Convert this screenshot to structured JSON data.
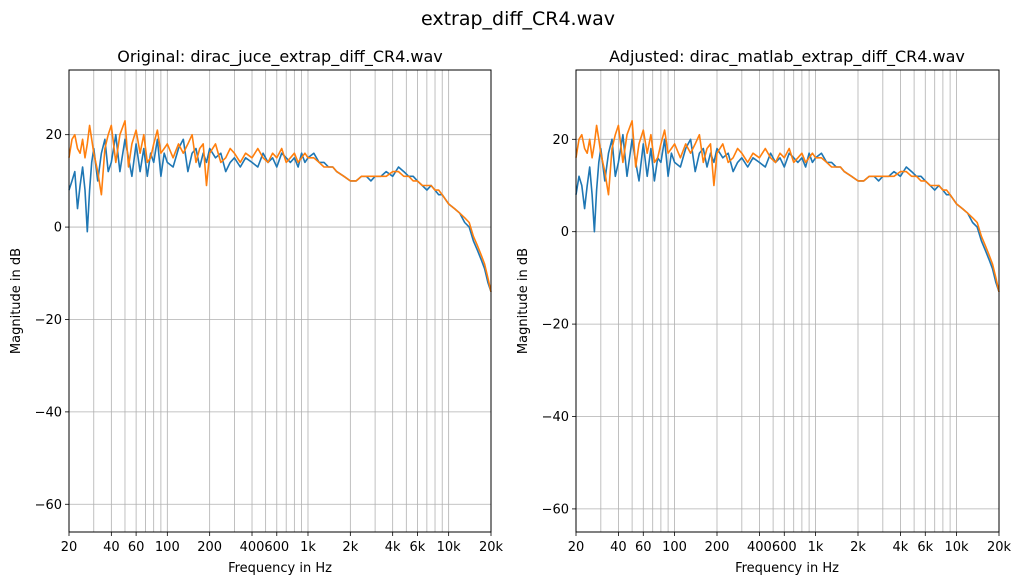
{
  "figure": {
    "suptitle": "extrap_diff_CR4.wav"
  },
  "colors": {
    "series_1": "#1f77b4",
    "series_2": "#ff7f0e",
    "grid": "#b0b0b0",
    "axes": "#000000"
  },
  "chart_data": [
    {
      "type": "line",
      "title": "Original: dirac_juce_extrap_diff_CR4.wav",
      "xlabel": "Frequency in Hz",
      "ylabel": "Magnitude in dB",
      "xscale": "log",
      "xlim": [
        20,
        20000
      ],
      "ylim": [
        -66,
        34
      ],
      "grid": true,
      "xticks": [
        20,
        40,
        60,
        100,
        200,
        400,
        600,
        1000,
        2000,
        4000,
        6000,
        10000,
        20000
      ],
      "xticklabels": [
        "20",
        "40",
        "60",
        "100",
        "200",
        "400",
        "600",
        "1k",
        "2k",
        "4k",
        "6k",
        "10k",
        "20k"
      ],
      "yticks": [
        20,
        0,
        -20,
        -40,
        -60
      ],
      "yticklabels": [
        "20",
        "0",
        "−20",
        "−40",
        "−60"
      ],
      "series": [
        {
          "color": "#1f77b4",
          "x": [
            20,
            21,
            22,
            23,
            24,
            25,
            26,
            27,
            28,
            29,
            30,
            32,
            34,
            36,
            38,
            40,
            43,
            46,
            50,
            53,
            56,
            60,
            64,
            68,
            72,
            76,
            80,
            85,
            90,
            95,
            100,
            110,
            120,
            130,
            140,
            150,
            160,
            170,
            180,
            190,
            200,
            220,
            240,
            260,
            280,
            300,
            330,
            360,
            400,
            440,
            480,
            520,
            560,
            600,
            650,
            700,
            750,
            800,
            850,
            900,
            950,
            1000,
            1100,
            1200,
            1300,
            1400,
            1500,
            1600,
            1800,
            2000,
            2200,
            2400,
            2600,
            2800,
            3000,
            3300,
            3600,
            4000,
            4400,
            4800,
            5200,
            5600,
            6000,
            6500,
            7000,
            7500,
            8000,
            8500,
            9000,
            9500,
            10000,
            11000,
            12000,
            13000,
            14000,
            15000,
            16000,
            17000,
            18000,
            19000,
            20000
          ],
          "y": [
            8,
            10,
            12,
            4,
            9,
            13,
            8,
            -1,
            8,
            14,
            17,
            10,
            16,
            19,
            12,
            14,
            20,
            12,
            19,
            15,
            11,
            18,
            12,
            17,
            11,
            16,
            14,
            19,
            11,
            16,
            14,
            13,
            17,
            19,
            12,
            16,
            17,
            13,
            16,
            14,
            17,
            15,
            16,
            12,
            14,
            15,
            13,
            15,
            14,
            13,
            16,
            14,
            15,
            13,
            16,
            15,
            14,
            15,
            13,
            16,
            14,
            15,
            16,
            14,
            14,
            13,
            13,
            12,
            11,
            10,
            10,
            11,
            11,
            10,
            11,
            11,
            12,
            11,
            13,
            12,
            11,
            11,
            10,
            9,
            8,
            9,
            8,
            7,
            7,
            6,
            5,
            4,
            3,
            1,
            0,
            -3,
            -5,
            -7,
            -9,
            -12,
            -14
          ]
        },
        {
          "color": "#ff7f0e",
          "x": [
            20,
            21,
            22,
            23,
            24,
            25,
            26,
            27,
            28,
            29,
            30,
            32,
            34,
            36,
            38,
            40,
            43,
            46,
            50,
            53,
            56,
            60,
            64,
            68,
            72,
            76,
            80,
            85,
            90,
            95,
            100,
            110,
            120,
            130,
            140,
            150,
            160,
            170,
            180,
            190,
            200,
            220,
            240,
            260,
            280,
            300,
            330,
            360,
            400,
            440,
            480,
            520,
            560,
            600,
            650,
            700,
            750,
            800,
            850,
            900,
            950,
            1000,
            1100,
            1200,
            1300,
            1400,
            1500,
            1600,
            1800,
            2000,
            2200,
            2400,
            2600,
            2800,
            3000,
            3300,
            3600,
            4000,
            4400,
            4800,
            5200,
            5600,
            6000,
            6500,
            7000,
            7500,
            8000,
            8500,
            9000,
            9500,
            10000,
            11000,
            12000,
            13000,
            14000,
            15000,
            16000,
            17000,
            18000,
            19000,
            20000
          ],
          "y": [
            15,
            19,
            20,
            17,
            16,
            19,
            15,
            18,
            22,
            19,
            16,
            12,
            7,
            17,
            20,
            22,
            14,
            20,
            23,
            13,
            18,
            21,
            16,
            20,
            14,
            15,
            18,
            21,
            16,
            17,
            18,
            15,
            18,
            16,
            18,
            20,
            14,
            17,
            18,
            9,
            16,
            18,
            14,
            15,
            17,
            16,
            14,
            16,
            15,
            17,
            15,
            14,
            16,
            15,
            17,
            14,
            15,
            16,
            14,
            15,
            16,
            15,
            15,
            14,
            13,
            13,
            13,
            12,
            11,
            10,
            10,
            11,
            11,
            11,
            11,
            11,
            11,
            12,
            12,
            11,
            11,
            10,
            10,
            9,
            9,
            9,
            8,
            8,
            7,
            6,
            5,
            4,
            3,
            2,
            1,
            -2,
            -4,
            -6,
            -8,
            -11,
            -14
          ]
        }
      ]
    },
    {
      "type": "line",
      "title": "Adjusted: dirac_matlab_extrap_diff_CR4.wav",
      "xlabel": "Frequency in Hz",
      "ylabel": "Magnitude in dB",
      "xscale": "log",
      "xlim": [
        20,
        20000
      ],
      "ylim": [
        -65,
        35
      ],
      "grid": true,
      "xticks": [
        20,
        40,
        60,
        100,
        200,
        400,
        600,
        1000,
        2000,
        4000,
        6000,
        10000,
        20000
      ],
      "xticklabels": [
        "20",
        "40",
        "60",
        "100",
        "200",
        "400",
        "600",
        "1k",
        "2k",
        "4k",
        "6k",
        "10k",
        "20k"
      ],
      "yticks": [
        20,
        0,
        -20,
        -40,
        -60
      ],
      "yticklabels": [
        "20",
        "0",
        "−20",
        "−40",
        "−60"
      ],
      "series": [
        {
          "color": "#1f77b4",
          "x": [
            20,
            21,
            22,
            23,
            24,
            25,
            26,
            27,
            28,
            29,
            30,
            32,
            34,
            36,
            38,
            40,
            43,
            46,
            50,
            53,
            56,
            60,
            64,
            68,
            72,
            76,
            80,
            85,
            90,
            95,
            100,
            110,
            120,
            130,
            140,
            150,
            160,
            170,
            180,
            190,
            200,
            220,
            240,
            260,
            280,
            300,
            330,
            360,
            400,
            440,
            480,
            520,
            560,
            600,
            650,
            700,
            750,
            800,
            850,
            900,
            950,
            1000,
            1100,
            1200,
            1300,
            1400,
            1500,
            1600,
            1800,
            2000,
            2200,
            2400,
            2600,
            2800,
            3000,
            3300,
            3600,
            4000,
            4400,
            4800,
            5200,
            5600,
            6000,
            6500,
            7000,
            7500,
            8000,
            8500,
            9000,
            9500,
            10000,
            11000,
            12000,
            13000,
            14000,
            15000,
            16000,
            17000,
            18000,
            19000,
            20000
          ],
          "y": [
            8,
            12,
            10,
            5,
            10,
            14,
            8,
            0,
            9,
            15,
            18,
            11,
            17,
            20,
            12,
            15,
            21,
            12,
            20,
            15,
            11,
            19,
            12,
            18,
            11,
            16,
            15,
            20,
            12,
            17,
            15,
            14,
            18,
            20,
            13,
            17,
            18,
            14,
            17,
            15,
            18,
            16,
            17,
            13,
            15,
            16,
            14,
            16,
            15,
            14,
            17,
            15,
            16,
            14,
            17,
            16,
            15,
            16,
            14,
            17,
            15,
            16,
            17,
            15,
            15,
            14,
            14,
            13,
            12,
            11,
            11,
            12,
            12,
            11,
            12,
            12,
            13,
            12,
            14,
            13,
            12,
            12,
            11,
            10,
            9,
            10,
            9,
            8,
            8,
            7,
            6,
            5,
            4,
            2,
            1,
            -2,
            -4,
            -6,
            -8,
            -11,
            -13
          ]
        },
        {
          "color": "#ff7f0e",
          "x": [
            20,
            21,
            22,
            23,
            24,
            25,
            26,
            27,
            28,
            29,
            30,
            32,
            34,
            36,
            38,
            40,
            43,
            46,
            50,
            53,
            56,
            60,
            64,
            68,
            72,
            76,
            80,
            85,
            90,
            95,
            100,
            110,
            120,
            130,
            140,
            150,
            160,
            170,
            180,
            190,
            200,
            220,
            240,
            260,
            280,
            300,
            330,
            360,
            400,
            440,
            480,
            520,
            560,
            600,
            650,
            700,
            750,
            800,
            850,
            900,
            950,
            1000,
            1100,
            1200,
            1300,
            1400,
            1500,
            1600,
            1800,
            2000,
            2200,
            2400,
            2600,
            2800,
            3000,
            3300,
            3600,
            4000,
            4400,
            4800,
            5200,
            5600,
            6000,
            6500,
            7000,
            7500,
            8000,
            8500,
            9000,
            9500,
            10000,
            11000,
            12000,
            13000,
            14000,
            15000,
            16000,
            17000,
            18000,
            19000,
            20000
          ],
          "y": [
            16,
            20,
            21,
            18,
            17,
            20,
            16,
            19,
            23,
            20,
            17,
            13,
            8,
            18,
            21,
            23,
            15,
            21,
            24,
            14,
            19,
            22,
            17,
            21,
            15,
            16,
            19,
            22,
            17,
            18,
            19,
            16,
            19,
            17,
            19,
            21,
            15,
            18,
            19,
            10,
            17,
            19,
            15,
            16,
            18,
            17,
            15,
            17,
            16,
            18,
            16,
            15,
            17,
            16,
            18,
            15,
            16,
            17,
            15,
            16,
            17,
            16,
            16,
            15,
            14,
            14,
            14,
            13,
            12,
            11,
            11,
            12,
            12,
            12,
            12,
            12,
            12,
            13,
            13,
            12,
            12,
            11,
            11,
            10,
            10,
            10,
            9,
            9,
            8,
            7,
            6,
            5,
            4,
            3,
            2,
            -1,
            -3,
            -5,
            -7,
            -10,
            -13
          ]
        }
      ]
    }
  ]
}
